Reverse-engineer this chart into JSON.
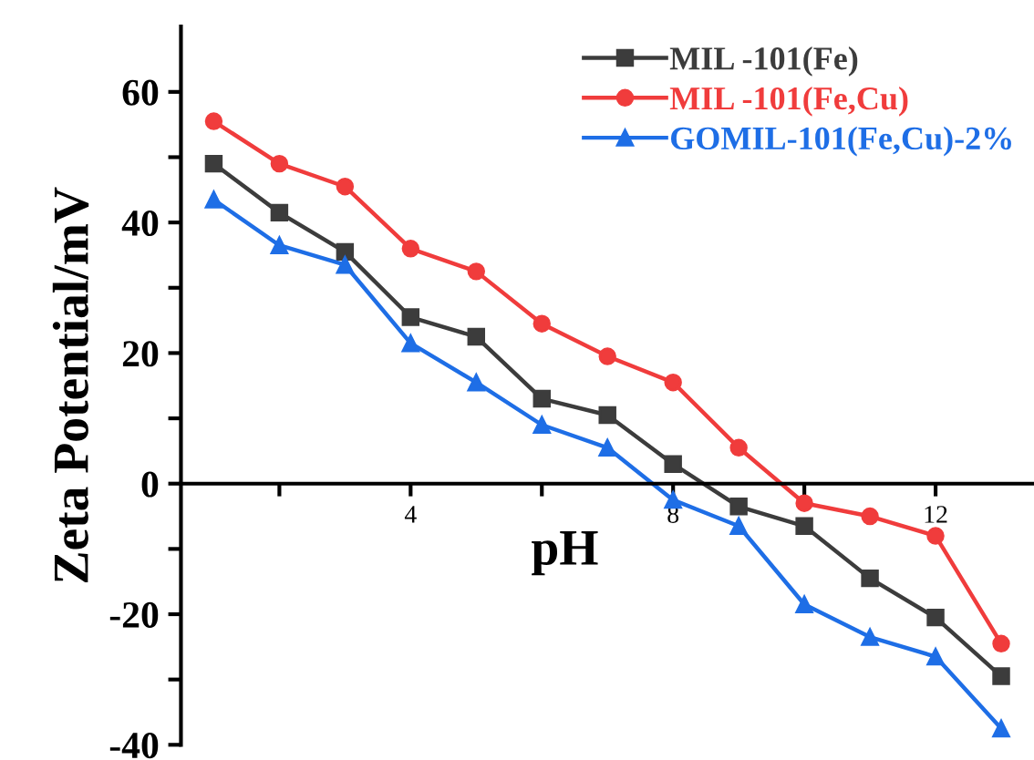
{
  "chart_data": {
    "type": "line",
    "xlabel": "pH",
    "ylabel": "Zeta Potential/mV",
    "x": [
      1,
      2,
      3,
      4,
      5,
      6,
      7,
      8,
      9,
      10,
      11,
      12,
      13
    ],
    "series": [
      {
        "name": "MIL -101(Fe)",
        "color": "#3c3c3c",
        "marker": "square",
        "values": [
          49,
          41.5,
          35.5,
          25.5,
          22.5,
          13,
          10.5,
          3,
          -3.5,
          -6.5,
          -14.5,
          -20.5,
          -29.5
        ]
      },
      {
        "name": "MIL -101(Fe,Cu)",
        "color": "#f03c3c",
        "marker": "circle",
        "values": [
          55.5,
          49,
          45.5,
          36,
          32.5,
          24.5,
          19.5,
          15.5,
          5.5,
          -3,
          -5,
          -8,
          -24.5
        ]
      },
      {
        "name": "GOMIL-101(Fe,Cu)-2%",
        "color": "#1e6ee6",
        "marker": "triangle",
        "values": [
          43.5,
          36.5,
          33.5,
          21.5,
          15.5,
          9,
          5.5,
          -2.5,
          -6.5,
          -18.5,
          -23.5,
          -26.5,
          -37.5
        ]
      }
    ],
    "xlim": [
      0.5,
      13.5
    ],
    "ylim": [
      -40,
      70
    ],
    "xticks": [
      {
        "value": 2,
        "label": null
      },
      4,
      {
        "value": 6,
        "label": null
      },
      8,
      {
        "value": 10,
        "label": null
      },
      12
    ],
    "yticks": [
      -40,
      {
        "value": -30,
        "label": null
      },
      -20,
      {
        "value": -10,
        "label": null
      },
      0,
      {
        "value": 10,
        "label": null
      },
      20,
      {
        "value": 30,
        "label": null
      },
      40,
      {
        "value": 50,
        "label": null
      },
      60
    ],
    "legend": "top right",
    "grid": false,
    "line_style": "solid"
  }
}
